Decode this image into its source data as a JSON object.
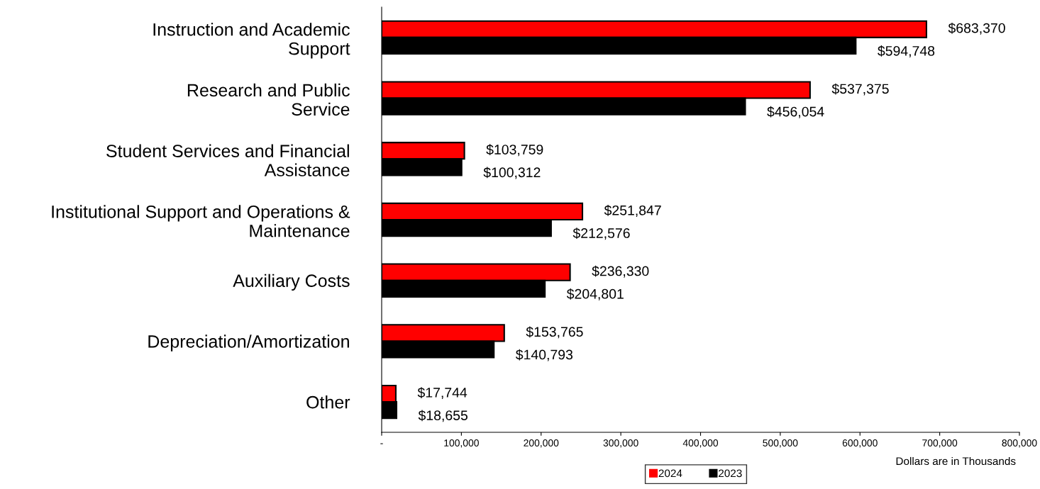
{
  "chart_data": {
    "type": "bar",
    "orientation": "horizontal",
    "categories": [
      "Instruction and Academic\nSupport",
      "Research and Public\nService",
      "Student Services and Financial\nAssistance",
      "Institutional Support and Operations &\nMaintenance",
      "Auxiliary Costs",
      "Depreciation/Amortization",
      "Other"
    ],
    "series": [
      {
        "name": "2024",
        "color": "#ff0000",
        "values": [
          683370,
          537375,
          103759,
          251847,
          236330,
          153765,
          17744
        ],
        "value_labels": [
          "$683,370",
          "$537,375",
          "$103,759",
          "$251,847",
          "$236,330",
          "$153,765",
          "$17,744"
        ]
      },
      {
        "name": "2023",
        "color": "#000000",
        "values": [
          594748,
          456054,
          100312,
          212576,
          204801,
          140793,
          18655
        ],
        "value_labels": [
          "$594,748",
          "$456,054",
          "$100,312",
          "$212,576",
          "$204,801",
          "$140,793",
          "$18,655"
        ]
      }
    ],
    "xlim": [
      0,
      800000
    ],
    "xticks": [
      {
        "value": 0,
        "label": "-"
      },
      {
        "value": 100000,
        "label": "100,000"
      },
      {
        "value": 200000,
        "label": "200,000"
      },
      {
        "value": 300000,
        "label": "300,000"
      },
      {
        "value": 400000,
        "label": "400,000"
      },
      {
        "value": 500000,
        "label": "500,000"
      },
      {
        "value": 600000,
        "label": "600,000"
      },
      {
        "value": 700000,
        "label": "700,000"
      },
      {
        "value": 800000,
        "label": "800,000"
      }
    ],
    "annotations": [
      "Dollars are in Thousands"
    ],
    "grid": false,
    "legend": "bottom"
  }
}
